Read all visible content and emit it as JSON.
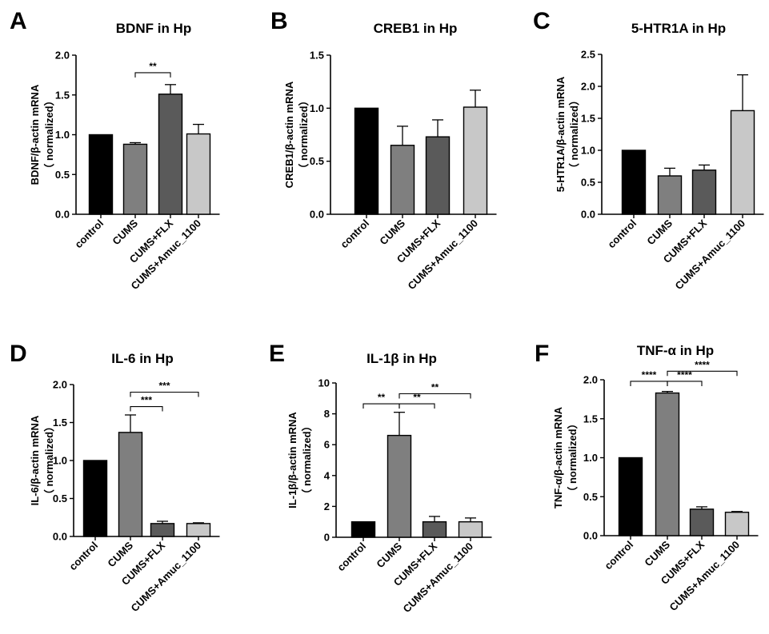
{
  "figure": {
    "colors": {
      "control": "#000000",
      "CUMS": "#7f7f7f",
      "CUMS+FLX": "#5a5a5a",
      "CUMS+Amuc_1100": "#c8c8c8",
      "axis": "#000000"
    }
  },
  "chart_data": [
    {
      "panel": "A",
      "type": "bar",
      "title": "BDNF in Hp",
      "ylabel": "BDNF/β-actin mRNA",
      "ylabel2": "（ normalized）",
      "categories": [
        "control",
        "CUMS",
        "CUMS+FLX",
        "CUMS+Amuc_1100"
      ],
      "values": [
        1.0,
        0.88,
        1.51,
        1.01
      ],
      "errors": [
        0,
        0.02,
        0.12,
        0.12
      ],
      "ylim": [
        0,
        2.0
      ],
      "yticks": [
        "0.0",
        "0.5",
        "1.0",
        "1.5",
        "2.0"
      ],
      "significance": [
        {
          "from": 1,
          "to": 2,
          "label": "**",
          "y": 1.78
        }
      ]
    },
    {
      "panel": "B",
      "type": "bar",
      "title": "CREB1 in Hp",
      "ylabel": "CREB1/β-actin mRNA",
      "ylabel2": "（ normalized）",
      "categories": [
        "control",
        "CUMS",
        "CUMS+FLX",
        "CUMS+Amuc_1100"
      ],
      "values": [
        1.0,
        0.65,
        0.73,
        1.01
      ],
      "errors": [
        0,
        0.18,
        0.16,
        0.16
      ],
      "ylim": [
        0,
        1.5
      ],
      "yticks": [
        "0.0",
        "0.5",
        "1.0",
        "1.5"
      ],
      "significance": []
    },
    {
      "panel": "C",
      "type": "bar",
      "title": "5-HTR1A in Hp",
      "ylabel": "5-HTR1A/β-actin mRNA",
      "ylabel2": "（ normalized）",
      "categories": [
        "control",
        "CUMS",
        "CUMS+FLX",
        "CUMS+Amuc_1100"
      ],
      "values": [
        1.0,
        0.6,
        0.69,
        1.62
      ],
      "errors": [
        0,
        0.12,
        0.08,
        0.56
      ],
      "ylim": [
        0,
        2.5
      ],
      "yticks": [
        "0.0",
        "0.5",
        "1.0",
        "1.5",
        "2.0",
        "2.5"
      ],
      "significance": []
    },
    {
      "panel": "D",
      "type": "bar",
      "title": "IL-6 in Hp",
      "ylabel": "IL-6/β-actin mRNA",
      "ylabel2": "（ normalized）",
      "categories": [
        "control",
        "CUMS",
        "CUMS+FLX",
        "CUMS+Amuc_1100"
      ],
      "values": [
        1.0,
        1.37,
        0.17,
        0.17
      ],
      "errors": [
        0,
        0.23,
        0.03,
        0.01
      ],
      "ylim": [
        0,
        2.0
      ],
      "yticks": [
        "0.0",
        "0.5",
        "1.0",
        "1.5",
        "2.0"
      ],
      "significance": [
        {
          "from": 1,
          "to": 2,
          "label": "***",
          "y": 1.71
        },
        {
          "from": 1,
          "to": 3,
          "label": "***",
          "y": 1.9
        }
      ]
    },
    {
      "panel": "E",
      "type": "bar",
      "title": "IL-1β in Hp",
      "ylabel": "IL-1β/β-actin mRNA",
      "ylabel2": "（ normalized）",
      "categories": [
        "control",
        "CUMS",
        "CUMS+FLX",
        "CUMS+Amuc_1100"
      ],
      "values": [
        1.0,
        6.6,
        1.0,
        1.0
      ],
      "errors": [
        0,
        1.5,
        0.35,
        0.25
      ],
      "ylim": [
        0,
        10
      ],
      "yticks": [
        "0",
        "2",
        "4",
        "6",
        "8",
        "10"
      ],
      "significance": [
        {
          "from": 0,
          "to": 1,
          "label": "**",
          "y": 8.65
        },
        {
          "from": 1,
          "to": 2,
          "label": "**",
          "y": 8.65
        },
        {
          "from": 1,
          "to": 3,
          "label": "**",
          "y": 9.3
        }
      ]
    },
    {
      "panel": "F",
      "type": "bar",
      "title": "TNF-α in Hp",
      "ylabel": "TNF-α/β-actin mRNA",
      "ylabel2": "（ normalized）",
      "categories": [
        "control",
        "CUMS",
        "CUMS+FLX",
        "CUMS+Amuc_1100"
      ],
      "values": [
        1.0,
        1.83,
        0.34,
        0.3
      ],
      "errors": [
        0,
        0.02,
        0.03,
        0.01
      ],
      "ylim": [
        0,
        2.0
      ],
      "yticks": [
        "0.0",
        "0.5",
        "1.0",
        "1.5",
        "2.0"
      ],
      "significance": [
        {
          "from": 0,
          "to": 1,
          "label": "****",
          "y": 1.98
        },
        {
          "from": 1,
          "to": 2,
          "label": "****",
          "y": 1.98
        },
        {
          "from": 1,
          "to": 3,
          "label": "****",
          "y": 2.11
        }
      ]
    }
  ]
}
